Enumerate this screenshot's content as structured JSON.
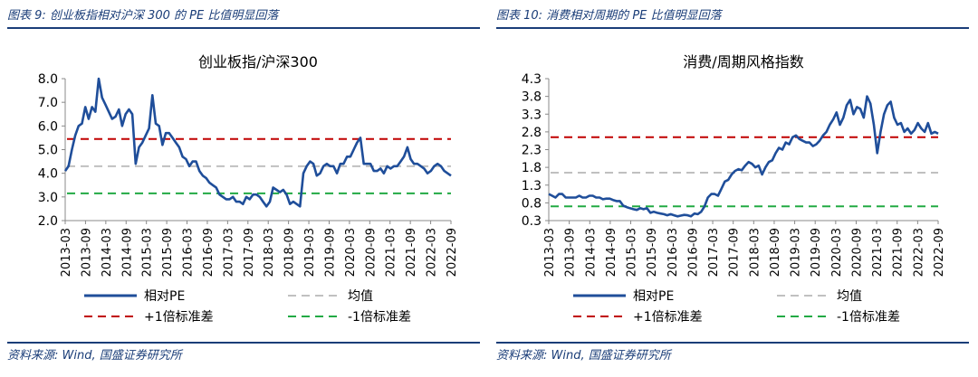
{
  "charts": [
    {
      "figure_title": "图表 9:  创业板指相对沪深 300 的 PE 比值明显回落",
      "source": "资料来源:  Wind,  国盛证券研究所",
      "legend": {
        "line": "相对PE",
        "mean": "均值",
        "plus": "+1倍标准差",
        "minus": "-1倍标准差"
      }
    },
    {
      "figure_title": "图表 10:  消费相对周期的 PE 比值明显回落",
      "source": "资料来源:  Wind,  国盛证券研究所",
      "legend": {
        "line": "相对PE",
        "mean": "均值",
        "plus": "+1倍标准差",
        "minus": "-1倍标准差"
      }
    }
  ],
  "chart_data": [
    {
      "type": "line",
      "title": "创业板指/沪深300",
      "x_ticks": [
        "2013-03",
        "2013-09",
        "2014-03",
        "2014-09",
        "2015-03",
        "2015-09",
        "2016-03",
        "2016-09",
        "2017-03",
        "2017-09",
        "2018-03",
        "2018-09",
        "2019-03",
        "2019-09",
        "2020-03",
        "2020-09",
        "2021-03",
        "2021-09",
        "2022-03",
        "2022-09"
      ],
      "x_range": [
        2013.167,
        2022.75
      ],
      "ylim": [
        2.0,
        8.0
      ],
      "y_ticks": [
        "2.0",
        "3.0",
        "4.0",
        "5.0",
        "6.0",
        "7.0",
        "8.0"
      ],
      "mean": 4.3,
      "plus_1sd": 5.45,
      "minus_1sd": 3.15,
      "series": [
        {
          "name": "相对PE",
          "x": [
            2013.167,
            2013.25,
            2013.333,
            2013.417,
            2013.5,
            2013.583,
            2013.667,
            2013.75,
            2013.833,
            2013.917,
            2014.0,
            2014.083,
            2014.167,
            2014.25,
            2014.333,
            2014.417,
            2014.5,
            2014.583,
            2014.667,
            2014.75,
            2014.833,
            2014.917,
            2015.0,
            2015.083,
            2015.167,
            2015.25,
            2015.333,
            2015.417,
            2015.5,
            2015.583,
            2015.667,
            2015.75,
            2015.833,
            2015.917,
            2016.0,
            2016.083,
            2016.167,
            2016.25,
            2016.333,
            2016.417,
            2016.5,
            2016.583,
            2016.667,
            2016.75,
            2016.833,
            2016.917,
            2017.0,
            2017.083,
            2017.167,
            2017.25,
            2017.333,
            2017.417,
            2017.5,
            2017.583,
            2017.667,
            2017.75,
            2017.833,
            2017.917,
            2018.0,
            2018.083,
            2018.167,
            2018.25,
            2018.333,
            2018.417,
            2018.5,
            2018.583,
            2018.667,
            2018.75,
            2018.833,
            2018.917,
            2019.0,
            2019.083,
            2019.167,
            2019.25,
            2019.333,
            2019.417,
            2019.5,
            2019.583,
            2019.667,
            2019.75,
            2019.833,
            2019.917,
            2020.0,
            2020.083,
            2020.167,
            2020.25,
            2020.333,
            2020.417,
            2020.5,
            2020.583,
            2020.667,
            2020.75,
            2020.833,
            2020.917,
            2021.0,
            2021.083,
            2021.167,
            2021.25,
            2021.333,
            2021.417,
            2021.5,
            2021.583,
            2021.667,
            2021.75,
            2021.833,
            2021.917,
            2022.0,
            2022.083,
            2022.167,
            2022.25,
            2022.333,
            2022.417,
            2022.5,
            2022.583,
            2022.667,
            2022.75
          ],
          "y": [
            4.1,
            4.3,
            5.0,
            5.6,
            6.0,
            6.1,
            6.8,
            6.3,
            6.8,
            6.6,
            8.0,
            7.2,
            6.9,
            6.6,
            6.3,
            6.4,
            6.7,
            6.0,
            6.5,
            6.7,
            6.5,
            4.4,
            5.1,
            5.3,
            5.6,
            5.9,
            7.3,
            6.1,
            6.0,
            5.2,
            5.7,
            5.7,
            5.5,
            5.3,
            5.1,
            4.7,
            4.6,
            4.3,
            4.5,
            4.5,
            4.1,
            3.9,
            3.8,
            3.6,
            3.5,
            3.4,
            3.1,
            3.0,
            2.9,
            2.9,
            3.0,
            2.8,
            2.8,
            2.7,
            3.0,
            2.9,
            3.1,
            3.1,
            3.0,
            2.8,
            2.6,
            2.8,
            3.4,
            3.3,
            3.2,
            3.3,
            3.1,
            2.7,
            2.8,
            2.7,
            2.6,
            4.0,
            4.3,
            4.5,
            4.4,
            3.9,
            4.0,
            4.3,
            4.4,
            4.3,
            4.3,
            4.0,
            4.4,
            4.4,
            4.7,
            4.7,
            5.0,
            5.3,
            5.5,
            4.4,
            4.4,
            4.4,
            4.1,
            4.1,
            4.2,
            4.0,
            4.3,
            4.2,
            4.3,
            4.3,
            4.5,
            4.7,
            5.1,
            4.6,
            4.4,
            4.4,
            4.3,
            4.2,
            4.0,
            4.1,
            4.3,
            4.4,
            4.3,
            4.1,
            4.0,
            3.9
          ]
        }
      ]
    },
    {
      "type": "line",
      "title": "消费/周期风格指数",
      "x_ticks": [
        "2013-03",
        "2013-09",
        "2014-03",
        "2014-09",
        "2015-03",
        "2015-09",
        "2016-03",
        "2016-09",
        "2017-03",
        "2017-09",
        "2018-03",
        "2018-09",
        "2019-03",
        "2019-09",
        "2020-03",
        "2020-09",
        "2021-03",
        "2021-09",
        "2022-03",
        "2022-09"
      ],
      "x_range": [
        2013.167,
        2022.75
      ],
      "ylim": [
        0.3,
        4.3
      ],
      "y_ticks": [
        "0.3",
        "0.8",
        "1.3",
        "1.8",
        "2.3",
        "2.8",
        "3.3",
        "3.8",
        "4.3"
      ],
      "mean": 1.65,
      "plus_1sd": 2.65,
      "minus_1sd": 0.7,
      "series": [
        {
          "name": "相对PE",
          "x": [
            2013.167,
            2013.25,
            2013.333,
            2013.417,
            2013.5,
            2013.583,
            2013.667,
            2013.75,
            2013.833,
            2013.917,
            2014.0,
            2014.083,
            2014.167,
            2014.25,
            2014.333,
            2014.417,
            2014.5,
            2014.583,
            2014.667,
            2014.75,
            2014.833,
            2014.917,
            2015.0,
            2015.083,
            2015.167,
            2015.25,
            2015.333,
            2015.417,
            2015.5,
            2015.583,
            2015.667,
            2015.75,
            2015.833,
            2015.917,
            2016.0,
            2016.083,
            2016.167,
            2016.25,
            2016.333,
            2016.417,
            2016.5,
            2016.583,
            2016.667,
            2016.75,
            2016.833,
            2016.917,
            2017.0,
            2017.083,
            2017.167,
            2017.25,
            2017.333,
            2017.417,
            2017.5,
            2017.583,
            2017.667,
            2017.75,
            2017.833,
            2017.917,
            2018.0,
            2018.083,
            2018.167,
            2018.25,
            2018.333,
            2018.417,
            2018.5,
            2018.583,
            2018.667,
            2018.75,
            2018.833,
            2018.917,
            2019.0,
            2019.083,
            2019.167,
            2019.25,
            2019.333,
            2019.417,
            2019.5,
            2019.583,
            2019.667,
            2019.75,
            2019.833,
            2019.917,
            2020.0,
            2020.083,
            2020.167,
            2020.25,
            2020.333,
            2020.417,
            2020.5,
            2020.583,
            2020.667,
            2020.75,
            2020.833,
            2020.917,
            2021.0,
            2021.083,
            2021.167,
            2021.25,
            2021.333,
            2021.417,
            2021.5,
            2021.583,
            2021.667,
            2021.75,
            2021.833,
            2021.917,
            2022.0,
            2022.083,
            2022.167,
            2022.25,
            2022.333,
            2022.417,
            2022.5,
            2022.583,
            2022.667,
            2022.75
          ],
          "y": [
            1.05,
            1.0,
            0.95,
            1.05,
            1.05,
            0.95,
            0.95,
            0.95,
            0.95,
            1.0,
            0.95,
            0.95,
            1.0,
            1.0,
            0.95,
            0.95,
            0.9,
            0.92,
            0.92,
            0.88,
            0.85,
            0.85,
            0.72,
            0.68,
            0.65,
            0.62,
            0.6,
            0.65,
            0.62,
            0.65,
            0.52,
            0.55,
            0.52,
            0.5,
            0.48,
            0.45,
            0.48,
            0.45,
            0.42,
            0.44,
            0.46,
            0.45,
            0.42,
            0.5,
            0.48,
            0.55,
            0.7,
            0.95,
            1.05,
            1.05,
            1.0,
            1.2,
            1.4,
            1.45,
            1.6,
            1.7,
            1.75,
            1.72,
            1.85,
            1.95,
            1.9,
            1.8,
            1.85,
            1.6,
            1.8,
            1.95,
            2.0,
            2.2,
            2.35,
            2.3,
            2.5,
            2.45,
            2.65,
            2.7,
            2.6,
            2.55,
            2.5,
            2.5,
            2.4,
            2.45,
            2.55,
            2.7,
            2.8,
            3.0,
            3.15,
            3.35,
            3.0,
            3.2,
            3.55,
            3.7,
            3.3,
            3.5,
            3.45,
            3.2,
            3.8,
            3.6,
            3.0,
            2.2,
            2.8,
            3.3,
            3.55,
            3.65,
            3.2,
            3.0,
            3.05,
            2.8,
            2.9,
            2.75,
            2.85,
            3.05,
            2.9,
            2.8,
            3.05,
            2.75,
            2.8,
            2.75
          ]
        }
      ]
    }
  ]
}
